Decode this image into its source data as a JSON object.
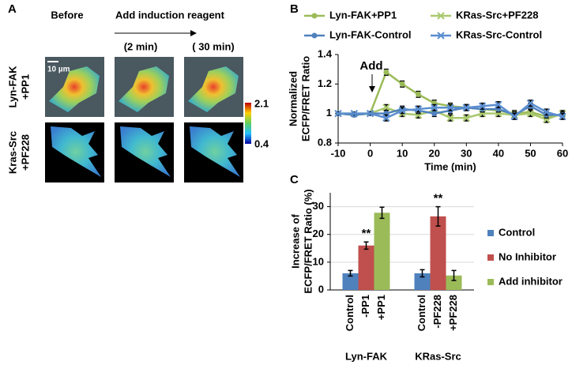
{
  "panel_a": {
    "label": "A",
    "columns": [
      "Before",
      "Add induction reagent"
    ],
    "times": [
      "(2 min)",
      "( 30 min)"
    ],
    "scale_bar": "10 µm",
    "rows": [
      [
        "Lyn-FAK",
        "+PP1"
      ],
      [
        "Kras-Src",
        "+PF228"
      ]
    ],
    "colorbar_range": [
      2.1,
      0.4
    ]
  },
  "chart_data": [
    {
      "type": "line",
      "label": "B",
      "x": [
        -10,
        -5,
        0,
        5,
        10,
        15,
        20,
        25,
        30,
        35,
        40,
        45,
        50,
        55,
        60
      ],
      "xlim": [
        -10,
        60
      ],
      "xticks": [
        -10,
        0,
        10,
        20,
        30,
        40,
        50,
        60
      ],
      "ylim": [
        0.8,
        1.4
      ],
      "yticks": [
        0.8,
        1,
        1.2,
        1.4
      ],
      "xlabel": "Time (min)",
      "ylabel": [
        "Normalized",
        "ECFP/FRET Ratio"
      ],
      "annotation": "Add",
      "series": [
        {
          "name": "Lyn-FAK+PP1",
          "color": "#9bbb59",
          "marker": "circle",
          "values": [
            1.0,
            0.99,
            1.0,
            1.28,
            1.2,
            1.13,
            1.07,
            1.05,
            1.04,
            1.03,
            1.02,
            1.0,
            1.01,
            0.98,
            0.99
          ],
          "errors": [
            0.01,
            0.01,
            0.01,
            0.02,
            0.02,
            0.02,
            0.02,
            0.02,
            0.02,
            0.02,
            0.02,
            0.02,
            0.02,
            0.02,
            0.02
          ]
        },
        {
          "name": "KRas-Src+PF228",
          "color": "#a9c96e",
          "marker": "x",
          "values": [
            1.0,
            1.0,
            1.0,
            1.04,
            1.0,
            0.99,
            1.02,
            0.97,
            0.97,
            1.0,
            1.0,
            0.99,
            1.0,
            0.96,
            1.0
          ],
          "errors": [
            0.01,
            0.01,
            0.01,
            0.02,
            0.02,
            0.02,
            0.02,
            0.02,
            0.02,
            0.02,
            0.02,
            0.02,
            0.02,
            0.02,
            0.02
          ]
        },
        {
          "name": "Lyn-FAK-Control",
          "color": "#4f81bd",
          "marker": "circle",
          "values": [
            1.0,
            0.99,
            1.0,
            1.0,
            1.03,
            1.02,
            1.0,
            1.02,
            1.04,
            1.03,
            1.03,
            0.99,
            1.05,
            0.99,
            0.99
          ],
          "errors": [
            0.01,
            0.01,
            0.01,
            0.02,
            0.02,
            0.02,
            0.02,
            0.02,
            0.02,
            0.02,
            0.02,
            0.02,
            0.02,
            0.02,
            0.02
          ]
        },
        {
          "name": "KRas-Src-Control",
          "color": "#5b8ed0",
          "marker": "x",
          "values": [
            1.0,
            1.0,
            1.0,
            0.97,
            1.02,
            1.03,
            1.04,
            1.04,
            1.04,
            1.05,
            1.06,
            0.98,
            1.07,
            1.01,
            0.98
          ],
          "errors": [
            0.01,
            0.01,
            0.01,
            0.02,
            0.02,
            0.02,
            0.02,
            0.02,
            0.02,
            0.02,
            0.02,
            0.02,
            0.02,
            0.02,
            0.02
          ]
        }
      ]
    },
    {
      "type": "bar",
      "label": "C",
      "groups": [
        "Lyn-FAK",
        "KRas-Src"
      ],
      "bar_labels": [
        [
          "Control",
          "-PP1",
          "+PP1"
        ],
        [
          "Control",
          "-PF228",
          "+PF228"
        ]
      ],
      "ylim": [
        0,
        35
      ],
      "yticks": [
        0,
        10,
        20,
        30
      ],
      "grid": true,
      "ylabel": [
        "Increase of",
        "ECFP/FRET Ratio (%)"
      ],
      "annotations": [
        "**",
        "**"
      ],
      "series": [
        {
          "name": "Control",
          "color": "#4f81bd",
          "values": [
            6,
            6
          ],
          "errors": [
            1,
            1.3
          ]
        },
        {
          "name": "No Inhibitor",
          "color": "#c0504d",
          "values": [
            16,
            26.5
          ],
          "errors": [
            1.3,
            3.5
          ]
        },
        {
          "name": "Add inhibitor",
          "color": "#9bbb59",
          "values": [
            27.8,
            5.2
          ],
          "errors": [
            2,
            1.8
          ]
        }
      ]
    }
  ]
}
